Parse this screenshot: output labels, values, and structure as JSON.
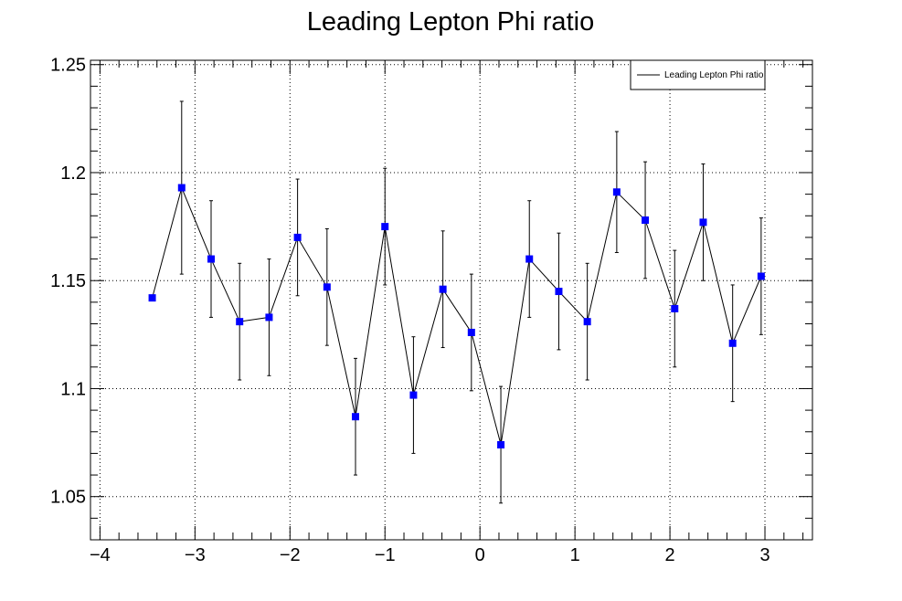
{
  "chart_data": {
    "type": "scatter",
    "title": "Leading Lepton Phi ratio",
    "xlabel": "",
    "ylabel": "",
    "xlim": [
      -4.1,
      3.5
    ],
    "ylim": [
      1.03,
      1.252
    ],
    "x_ticks": [
      -4,
      -3,
      -2,
      -1,
      0,
      1,
      2,
      3
    ],
    "x_tick_labels": [
      "−4",
      "−3",
      "−2",
      "−1",
      "0",
      "1",
      "2",
      "3"
    ],
    "y_ticks": [
      1.05,
      1.1,
      1.15,
      1.2,
      1.25
    ],
    "y_tick_labels": [
      "1.05",
      "1.1",
      "1.15",
      "1.2",
      "1.25"
    ],
    "grid": true,
    "legend_position": "top-right",
    "series": [
      {
        "name": "Leading Lepton Phi ratio",
        "color": "#0000ff",
        "line_color": "#000000",
        "x": [
          -3.45,
          -3.14,
          -2.83,
          -2.53,
          -2.22,
          -1.92,
          -1.61,
          -1.31,
          -1.0,
          -0.7,
          -0.39,
          -0.09,
          0.22,
          0.52,
          0.83,
          1.13,
          1.44,
          1.74,
          2.05,
          2.35,
          2.66,
          2.96
        ],
        "y": [
          1.142,
          1.193,
          1.16,
          1.131,
          1.133,
          1.17,
          1.147,
          1.087,
          1.175,
          1.097,
          1.146,
          1.126,
          1.074,
          1.16,
          1.145,
          1.131,
          1.191,
          1.178,
          1.137,
          1.177,
          1.121,
          1.152
        ],
        "y_err": [
          0.0,
          0.04,
          0.027,
          0.027,
          0.027,
          0.027,
          0.027,
          0.027,
          0.027,
          0.027,
          0.027,
          0.027,
          0.027,
          0.027,
          0.027,
          0.027,
          0.028,
          0.027,
          0.027,
          0.027,
          0.027,
          0.027
        ]
      }
    ]
  }
}
